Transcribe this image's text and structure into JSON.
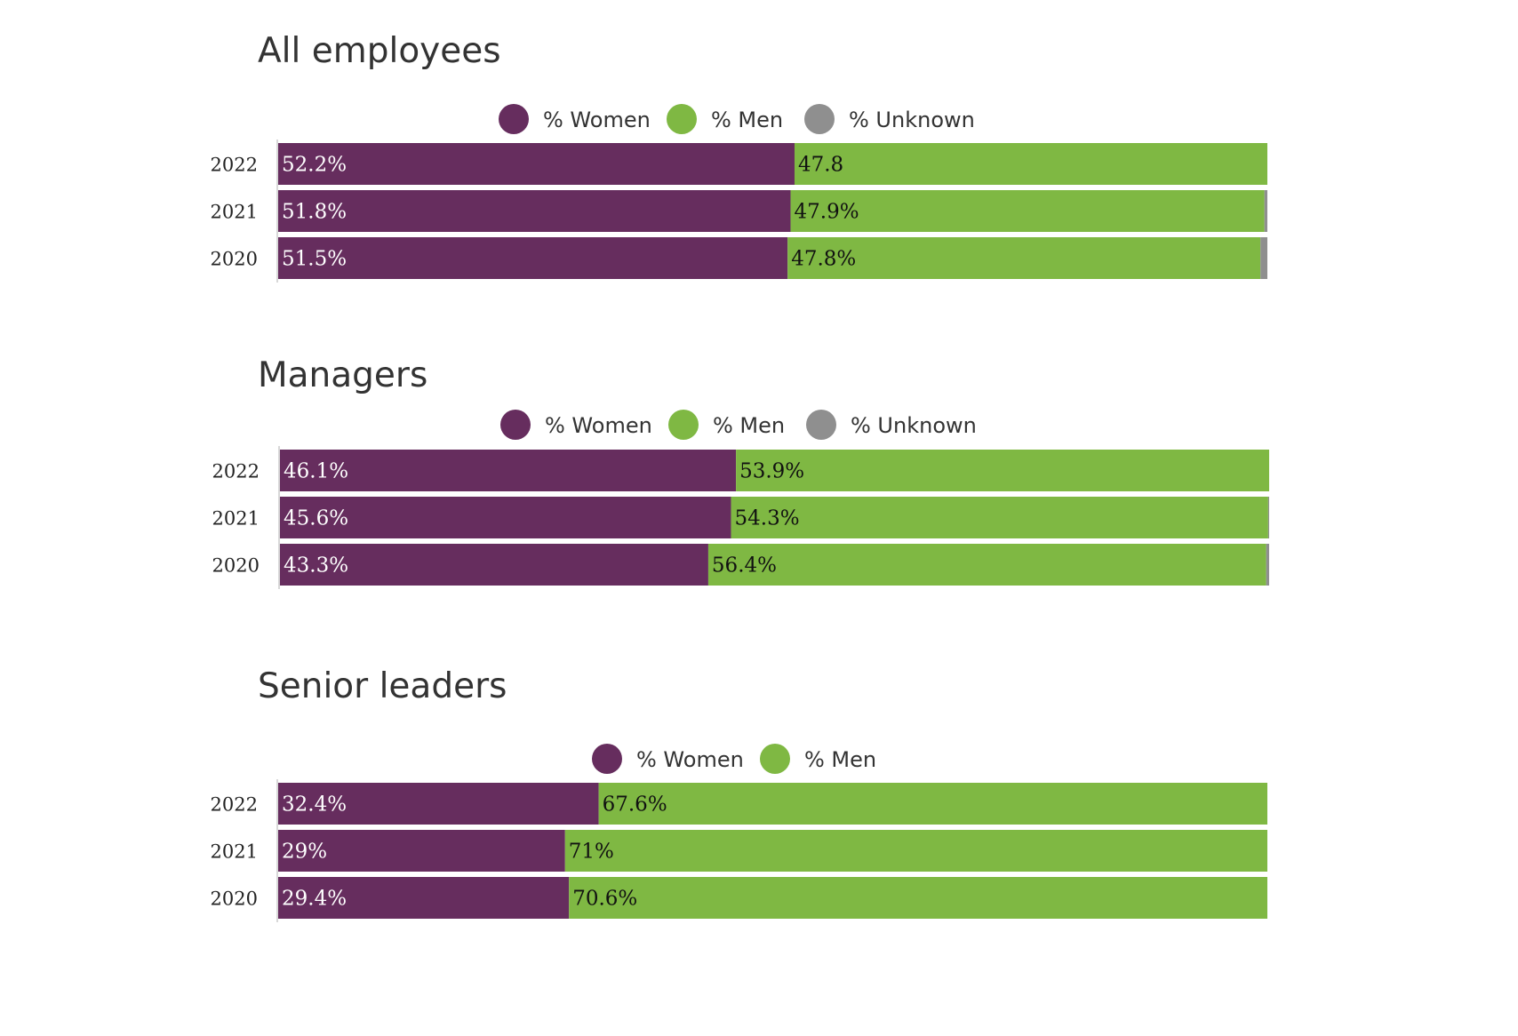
{
  "colors": {
    "women": "#662d5e",
    "men": "#7fb843",
    "unknown": "#8f8f8f",
    "axis": "#cccccc"
  },
  "chart_data": [
    {
      "type": "bar",
      "orientation": "horizontal",
      "stacked": true,
      "title": "All employees",
      "legend": [
        "% Women",
        "% Men",
        "% Unknown"
      ],
      "xlim": [
        0,
        100
      ],
      "categories": [
        "2022",
        "2021",
        "2020"
      ],
      "series": [
        {
          "name": "% Women",
          "key": "women",
          "values": [
            52.2,
            51.8,
            51.5
          ],
          "labels": [
            "52.2%",
            "51.8%",
            "51.5%"
          ]
        },
        {
          "name": "% Men",
          "key": "men",
          "values": [
            47.8,
            47.9,
            47.8
          ],
          "labels": [
            "47.8",
            "47.9%",
            "47.8%"
          ]
        },
        {
          "name": "% Unknown",
          "key": "unknown",
          "values": [
            0.0,
            0.3,
            0.7
          ],
          "labels": [
            null,
            null,
            null
          ]
        }
      ]
    },
    {
      "type": "bar",
      "orientation": "horizontal",
      "stacked": true,
      "title": "Managers",
      "legend": [
        "% Women",
        "% Men",
        "% Unknown"
      ],
      "xlim": [
        0,
        100
      ],
      "categories": [
        "2022",
        "2021",
        "2020"
      ],
      "series": [
        {
          "name": "% Women",
          "key": "women",
          "values": [
            46.1,
            45.6,
            43.3
          ],
          "labels": [
            "46.1%",
            "45.6%",
            "43.3%"
          ]
        },
        {
          "name": "% Men",
          "key": "men",
          "values": [
            53.9,
            54.3,
            56.4
          ],
          "labels": [
            "53.9%",
            "54.3%",
            "56.4%"
          ]
        },
        {
          "name": "% Unknown",
          "key": "unknown",
          "values": [
            0.0,
            0.1,
            0.3
          ],
          "labels": [
            null,
            null,
            null
          ]
        }
      ]
    },
    {
      "type": "bar",
      "orientation": "horizontal",
      "stacked": true,
      "title": "Senior leaders",
      "legend": [
        "% Women",
        "% Men"
      ],
      "xlim": [
        0,
        100
      ],
      "categories": [
        "2022",
        "2021",
        "2020"
      ],
      "series": [
        {
          "name": "% Women",
          "key": "women",
          "values": [
            32.4,
            29.0,
            29.4
          ],
          "labels": [
            "32.4%",
            "29%",
            "29.4%"
          ]
        },
        {
          "name": "% Men",
          "key": "men",
          "values": [
            67.6,
            71.0,
            70.6
          ],
          "labels": [
            "67.6%",
            "71%",
            "70.6%"
          ]
        }
      ]
    }
  ]
}
